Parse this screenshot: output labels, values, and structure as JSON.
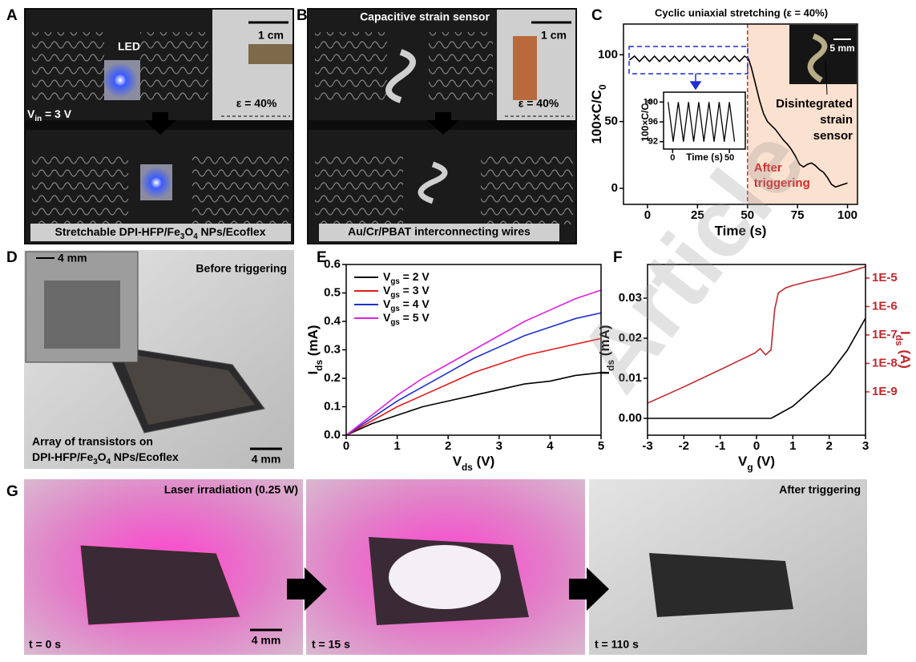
{
  "panels": {
    "A": {
      "letter": "A",
      "led": "LED",
      "scale": "1 cm",
      "strain": "ε = 40%",
      "vin": [
        "V",
        "in",
        " = 3 V"
      ],
      "caption": [
        "Stretchable DPI-HFP/Fe",
        "3",
        "O",
        "4",
        " NPs/Ecoflex"
      ]
    },
    "B": {
      "letter": "B",
      "sensor": "Capacitive strain sensor",
      "scale": "1 cm",
      "strain": "ε = 40%",
      "caption": "Au/Cr/PBAT interconnecting wires"
    },
    "D": {
      "letter": "D",
      "inset_scale": "4 mm",
      "state": "Before triggering",
      "caption_line1": "Array of transistors on",
      "caption_line2": [
        "DPI-HFP/Fe",
        "3",
        "O",
        "4",
        " NPs/Ecoflex"
      ],
      "scale": "4 mm"
    },
    "G": {
      "letter": "G",
      "frames": [
        {
          "label": "Laser irradiation (0.25 W)",
          "time": "t = 0 s",
          "scale": "4 mm"
        },
        {
          "time": "t = 15 s"
        },
        {
          "label": "After triggering",
          "time": "t = 110 s"
        }
      ]
    },
    "watermark": "Article"
  },
  "chart_data": [
    {
      "panel": "C",
      "type": "line",
      "title": "Cyclic uniaxial stretching (ε = 40%)",
      "x_label": "Time (s)",
      "y_label": [
        "100×C/C",
        "0"
      ],
      "xlim": [
        -12,
        105
      ],
      "ylim": [
        -12,
        123
      ],
      "xticks": [
        0,
        25,
        50,
        75,
        100
      ],
      "yticks": [
        0,
        50,
        100
      ],
      "series": [
        {
          "color": "#000000",
          "x": [
            -9,
            -6.5,
            -4,
            -1.5,
            1,
            3.5,
            6,
            8.5,
            11,
            13.5,
            16,
            18.5,
            21,
            23.5,
            26,
            28.5,
            31,
            33.5,
            36,
            38.5,
            41,
            43.5,
            46,
            48.5,
            50.5,
            52,
            54,
            56,
            58,
            60,
            62,
            64,
            66,
            68,
            70,
            72,
            74,
            76,
            78,
            80,
            82,
            84,
            86,
            88,
            90,
            92,
            94,
            96,
            98,
            100
          ],
          "values": [
            96,
            99,
            95,
            99,
            95,
            99,
            95,
            99,
            95,
            99,
            95,
            99,
            95,
            99,
            95,
            99,
            95,
            99,
            95,
            99,
            95,
            99,
            95,
            99,
            97,
            90,
            78,
            66,
            56,
            50,
            47,
            44,
            40,
            36,
            33,
            29,
            24,
            18,
            16,
            18,
            19,
            17,
            14,
            12,
            8,
            3,
            1,
            2,
            3,
            4
          ]
        }
      ],
      "vline": {
        "x": 50,
        "color": "#d62728",
        "lines": [
          "After",
          "triggering"
        ]
      },
      "annotation": [
        "Disintegrated",
        "strain",
        "sensor"
      ],
      "scale": "5 mm",
      "inset": {
        "type": "line",
        "x_label": "Time (s)",
        "y_label": [
          "100×C/C",
          "0"
        ],
        "xlim": [
          -8,
          64
        ],
        "ylim": [
          90.5,
          102
        ],
        "xticks": [
          0,
          50
        ],
        "yticks": [
          92,
          96,
          100
        ],
        "series": [
          {
            "color": "#000000",
            "x": [
              -4,
              0.5,
              5,
              9.5,
              14,
              18.5,
              23,
              27.5,
              32,
              36.5,
              41,
              45.5,
              50,
              54.5
            ],
            "values": [
              100,
              92,
              100,
              92,
              100,
              92,
              100,
              92,
              100,
              92,
              100,
              92,
              100,
              92
            ]
          }
        ]
      }
    },
    {
      "panel": "E",
      "type": "line",
      "x_label": [
        "V",
        "ds",
        " (V)"
      ],
      "y_label": [
        "I",
        "ds",
        " (mA)"
      ],
      "xlim": [
        0,
        5
      ],
      "ylim": [
        0,
        0.6
      ],
      "xticks": [
        0,
        1,
        2,
        3,
        4,
        5
      ],
      "yticks": [
        {
          "value": 0,
          "label": "0.0"
        },
        0.1,
        0.2,
        0.3,
        0.4,
        0.5,
        0.6
      ],
      "legend": "upper left",
      "x": [
        0,
        0.5,
        1,
        1.5,
        2,
        2.5,
        3,
        3.5,
        4,
        4.5,
        5
      ],
      "series": [
        {
          "name": [
            "V",
            "gs",
            " = 2 V"
          ],
          "color": "#000000",
          "values": [
            0,
            0.04,
            0.07,
            0.1,
            0.12,
            0.14,
            0.16,
            0.18,
            0.19,
            0.21,
            0.22
          ]
        },
        {
          "name": [
            "V",
            "gs",
            " = 3 V"
          ],
          "color": "#e41a1c",
          "values": [
            0,
            0.05,
            0.1,
            0.14,
            0.18,
            0.22,
            0.25,
            0.28,
            0.3,
            0.32,
            0.34
          ]
        },
        {
          "name": [
            "V",
            "gs",
            " = 4 V"
          ],
          "color": "#1f2fd0",
          "values": [
            0,
            0.06,
            0.12,
            0.17,
            0.22,
            0.27,
            0.31,
            0.35,
            0.38,
            0.41,
            0.43
          ]
        },
        {
          "name": [
            "V",
            "gs",
            " = 5 V"
          ],
          "color": "#e020e0",
          "values": [
            0,
            0.07,
            0.14,
            0.2,
            0.25,
            0.3,
            0.35,
            0.4,
            0.44,
            0.48,
            0.51
          ]
        }
      ]
    },
    {
      "panel": "F",
      "type": "line",
      "x_label": [
        "V",
        "g",
        " (V)"
      ],
      "y_label": [
        "I",
        "ds",
        " (mA)"
      ],
      "y2_label": [
        "I",
        "ds",
        " (A)"
      ],
      "xlim": [
        -3,
        3
      ],
      "ylim": [
        -0.0042,
        0.0384
      ],
      "y2lim": [
        3e-11,
        3e-05
      ],
      "y2scale": "log",
      "y2color": "#c0282d",
      "xticks": [
        -3,
        -2,
        -1,
        0,
        1,
        2,
        3
      ],
      "yticks": [
        {
          "value": 0,
          "label": "0.00"
        },
        0.01,
        0.02,
        0.03
      ],
      "y2ticks": [
        {
          "value": 1e-09,
          "label": "1E-9"
        },
        {
          "value": 1e-08,
          "label": "1E-8"
        },
        {
          "value": 1e-07,
          "label": "1E-7"
        },
        {
          "value": 1e-06,
          "label": "1E-6"
        },
        {
          "value": 1e-05,
          "label": "1E-5"
        }
      ],
      "series": [
        {
          "color": "#000000",
          "x": [
            -3,
            -2,
            -1,
            0,
            0.4,
            0.5,
            1,
            1.5,
            2,
            2.5,
            3
          ],
          "values": [
            0,
            0,
            0,
            0,
            0,
            0.0005,
            0.003,
            0.007,
            0.011,
            0.017,
            0.025
          ]
        },
        {
          "color": "#c0282d",
          "axis": "y2",
          "x": [
            -3,
            -2,
            -1,
            -0.05,
            0.1,
            0.25,
            0.4,
            0.5,
            0.6,
            0.8,
            1,
            1.5,
            2,
            2.5,
            3
          ],
          "values": [
            4e-10,
            1.5e-09,
            6e-09,
            2.3e-08,
            3.3e-08,
            2e-08,
            3e-08,
            8e-07,
            3e-06,
            4.5e-06,
            5.5e-06,
            8e-06,
            1.1e-05,
            1.6e-05,
            2.5e-05
          ]
        }
      ]
    }
  ]
}
